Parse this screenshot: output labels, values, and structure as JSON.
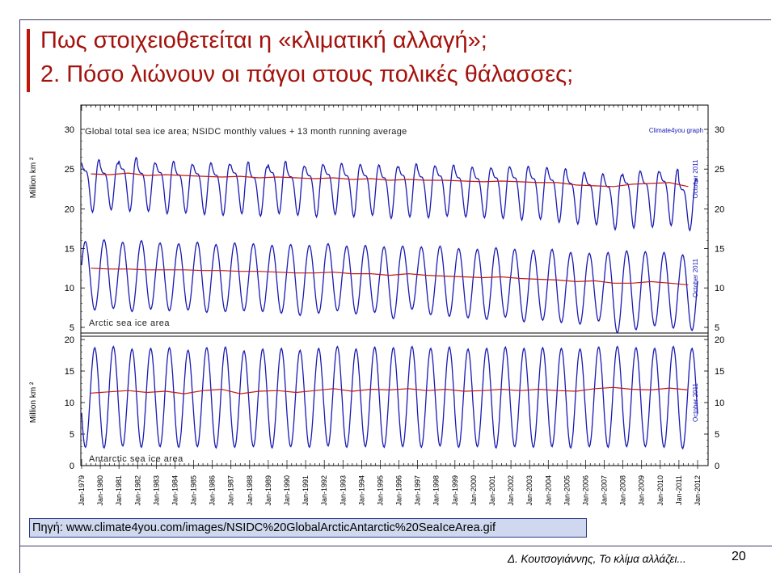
{
  "slide": {
    "title_line1": "Πως στοιχειοθετείται η «κλιματική αλλαγή»;",
    "title_line2": "2. Πόσο λιώνουν οι πάγοι στους πολικές θάλασσες;",
    "source": "Πηγή: www.climate4you.com/images/NSIDC%20GlobalArcticAntarctic%20SeaIceArea.gif",
    "footer_author": "Δ. Κουτσογιάννης, Το κλίμα αλλάζει...",
    "page_number": "20"
  },
  "colors": {
    "title": "#a3120c",
    "monthly_series": "#1a1ab4",
    "running_average": "#c41818",
    "source_box": "#cfd8ee"
  },
  "chart_data": {
    "type": "line",
    "header": "Global total sea ice area; NSIDC monthly values + 13 month running average",
    "credit": "Climate4you graph",
    "ylabel": "Million km ²",
    "x_tick_labels": [
      "Jan-1979",
      "Jan-1980",
      "Jan-1981",
      "Jan-1982",
      "Jan-1983",
      "Jan-1984",
      "Jan-1985",
      "Jan-1986",
      "Jan-1987",
      "Jan-1988",
      "Jan-1989",
      "Jan-1990",
      "Jan-1991",
      "Jan-1992",
      "Jan-1993",
      "Jan-1994",
      "Jan-1995",
      "Jan-1996",
      "Jan-1997",
      "Jan-1998",
      "Jan-1999",
      "Jan-2000",
      "Jan-2001",
      "Jan-2002",
      "Jan-2003",
      "Jan-2004",
      "Jan-2005",
      "Jan-2006",
      "Jan-2007",
      "Jan-2008",
      "Jan-2009",
      "Jan-2010",
      "Jan-2011",
      "Jan-2012"
    ],
    "panels": [
      {
        "label": "",
        "ylim": [
          17.5,
          30
        ],
        "yticks": [
          20,
          25,
          30
        ],
        "end_label": "October 2011",
        "monthly_max": [
          27.5,
          26.9,
          27.8,
          27.0,
          27.3,
          26.8,
          27.1,
          26.9,
          27.2,
          26.5,
          27.3,
          26.6,
          26.9,
          27.0,
          26.9,
          26.8,
          26.6,
          27.0,
          26.7,
          26.8,
          26.5,
          26.4,
          26.6,
          26.7,
          26.5,
          26.4,
          25.9,
          25.7,
          25.6,
          26.2,
          26.1,
          26.4,
          25.1
        ],
        "monthly_min": [
          19.5,
          19.8,
          19.6,
          19.6,
          19.3,
          19.4,
          19.2,
          19.1,
          19.3,
          19.0,
          19.3,
          19.1,
          18.9,
          19.2,
          18.9,
          19.1,
          18.7,
          18.9,
          18.8,
          19.0,
          18.9,
          18.8,
          18.7,
          18.5,
          18.6,
          18.2,
          18.0,
          17.9,
          17.3,
          17.5,
          17.6,
          17.8,
          17.2
        ],
        "running_average": [
          24.4,
          24.3,
          24.5,
          24.2,
          24.3,
          24.2,
          24.1,
          24.0,
          24.1,
          23.9,
          24.0,
          23.9,
          23.8,
          23.9,
          23.7,
          23.8,
          23.6,
          23.7,
          23.6,
          23.6,
          23.5,
          23.4,
          23.5,
          23.4,
          23.3,
          23.3,
          23.0,
          22.9,
          22.8,
          23.1,
          23.2,
          23.3,
          22.8
        ]
      },
      {
        "label": "Arctic sea ice area",
        "ylim": [
          5,
          17.5
        ],
        "yticks": [
          5,
          10,
          15
        ],
        "end_label": "October 2011",
        "monthly_max": [
          15.9,
          16.1,
          15.8,
          16.0,
          15.7,
          15.6,
          15.8,
          15.5,
          15.7,
          15.6,
          15.4,
          15.5,
          15.4,
          15.6,
          15.3,
          15.4,
          15.2,
          15.3,
          15.2,
          15.3,
          15.0,
          14.9,
          15.1,
          14.9,
          14.8,
          14.9,
          14.5,
          14.4,
          14.5,
          14.7,
          14.6,
          14.5,
          14.2
        ],
        "monthly_min": [
          7.2,
          7.4,
          7.0,
          7.3,
          7.1,
          7.2,
          6.9,
          7.0,
          7.1,
          7.0,
          6.8,
          6.5,
          6.8,
          7.1,
          6.7,
          6.9,
          6.1,
          7.3,
          6.6,
          6.4,
          6.2,
          6.0,
          6.3,
          5.7,
          5.9,
          5.6,
          5.4,
          5.8,
          4.3,
          4.7,
          5.2,
          4.9,
          4.6
        ],
        "running_average": [
          12.5,
          12.4,
          12.4,
          12.3,
          12.3,
          12.3,
          12.2,
          12.2,
          12.1,
          12.1,
          12.0,
          11.9,
          11.9,
          12.0,
          11.8,
          11.8,
          11.6,
          11.8,
          11.6,
          11.5,
          11.4,
          11.3,
          11.4,
          11.2,
          11.1,
          11.0,
          10.8,
          10.9,
          10.6,
          10.6,
          10.8,
          10.6,
          10.4
        ]
      },
      {
        "label": "Antarctic sea ice area",
        "ylim": [
          0,
          20
        ],
        "yticks": [
          0,
          5,
          10,
          15,
          20
        ],
        "end_label": "October 2011",
        "monthly_max": [
          18.7,
          18.9,
          18.5,
          18.6,
          18.7,
          18.3,
          18.7,
          18.8,
          18.2,
          18.5,
          18.6,
          18.3,
          18.6,
          18.9,
          18.5,
          18.8,
          18.7,
          18.9,
          18.6,
          18.8,
          18.5,
          18.6,
          18.8,
          18.6,
          18.7,
          18.6,
          18.5,
          18.8,
          18.9,
          18.7,
          18.6,
          18.9,
          18.6
        ],
        "monthly_min": [
          2.9,
          2.8,
          3.1,
          2.9,
          3.0,
          2.9,
          3.0,
          2.8,
          2.9,
          3.0,
          2.8,
          3.0,
          2.9,
          3.1,
          2.9,
          3.0,
          2.9,
          3.0,
          2.9,
          3.1,
          2.9,
          3.0,
          2.8,
          3.0,
          2.9,
          3.0,
          2.8,
          3.0,
          2.9,
          3.0,
          3.0,
          2.9,
          2.7
        ],
        "running_average": [
          11.5,
          11.7,
          11.9,
          11.6,
          11.8,
          11.4,
          11.9,
          12.1,
          11.4,
          11.8,
          11.9,
          11.6,
          11.9,
          12.2,
          11.8,
          12.1,
          12.0,
          12.2,
          11.9,
          12.1,
          11.8,
          11.9,
          12.1,
          11.9,
          12.1,
          11.9,
          11.8,
          12.2,
          12.4,
          12.1,
          12.0,
          12.3,
          12.0
        ]
      }
    ]
  }
}
